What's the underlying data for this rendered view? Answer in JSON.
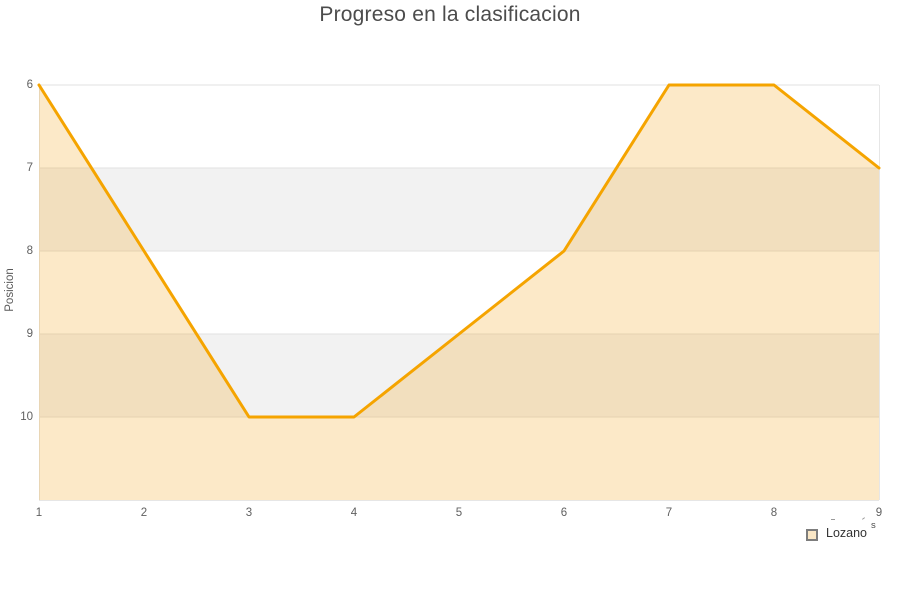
{
  "title": "Progreso en la clasificacion",
  "chart_data": {
    "type": "area",
    "title": "Progreso en la clasificacion",
    "x": [
      1,
      2,
      3,
      4,
      5,
      6,
      7,
      8,
      9
    ],
    "x_ticks": [
      1,
      2,
      3,
      4,
      5,
      6,
      7,
      8,
      9
    ],
    "series": [
      {
        "name": "Lozano",
        "values": [
          6,
          8,
          10,
          10,
          9,
          8,
          6,
          6,
          7
        ]
      }
    ],
    "xlabel": "",
    "ylabel": "Posicion",
    "ylim": [
      6,
      11
    ],
    "y_ticks": [
      6,
      7,
      8,
      9,
      10
    ],
    "y_inverted": true,
    "grid": "horizontal-bands",
    "legend_position": "bottom-right"
  },
  "legend": {
    "label": "Lozano",
    "superscript": "s"
  },
  "colors": {
    "line": "#f5a400",
    "fill": "#f5a623",
    "fill_opacity": 0.25,
    "band": "#f2f2f2",
    "grid": "#e1e1e1",
    "border": "#e6e6e6",
    "title_text": "#4c4c4c",
    "tick_text": "#606060",
    "legend_swatch_fill": "#fae7c6",
    "legend_swatch_border": "#7d7d7d"
  }
}
